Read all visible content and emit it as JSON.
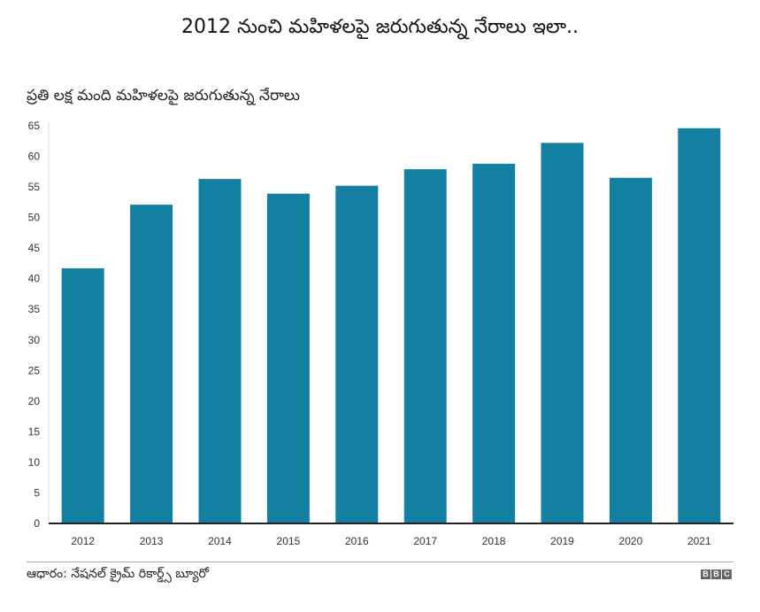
{
  "chart_data": {
    "type": "bar",
    "title": "2012 నుంచి మహిళలపై జరుగుతున్న నేరాలు ఇలా..",
    "subtitle": "ప్రతి లక్ష మంది మహిళలపై జరుగుతున్న నేరాలు",
    "xlabel": "",
    "ylabel": "",
    "categories": [
      "2012",
      "2013",
      "2014",
      "2015",
      "2016",
      "2017",
      "2018",
      "2019",
      "2020",
      "2021"
    ],
    "values": [
      41.7,
      52.1,
      56.3,
      53.9,
      55.2,
      57.9,
      58.8,
      62.2,
      56.5,
      64.6
    ],
    "ylim": [
      0,
      65
    ],
    "yticks": [
      0,
      5,
      10,
      15,
      20,
      25,
      30,
      35,
      40,
      45,
      50,
      55,
      60,
      65
    ],
    "grid": false,
    "bar_color": "#1380a1"
  },
  "footer": {
    "source": "ఆధారం: నేషనల్ క్రైమ్ రికార్డ్స్ బ్యూరో",
    "logo": [
      "B",
      "B",
      "C"
    ]
  }
}
